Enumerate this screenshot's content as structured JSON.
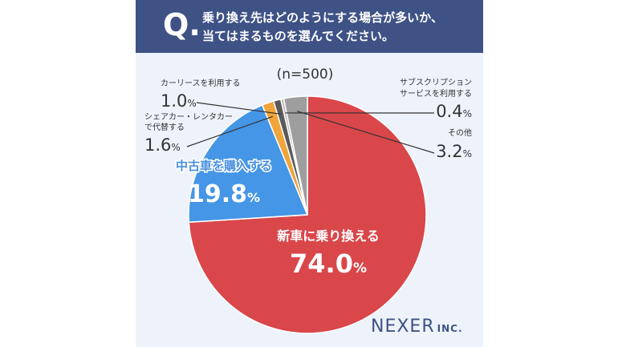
{
  "question": {
    "mark": "Q",
    "line1": "乗り換え先はどのようにする場合が多いか、",
    "line2": "当てはまるものを選んでください。"
  },
  "sample_size": "(n=500)",
  "brand": {
    "name": "NEXER",
    "suffix": "INC."
  },
  "colors": {
    "header": "#3e5286",
    "background": "#eef3fb",
    "new_car": "#d9474b",
    "used_car": "#4596e6",
    "rental": "#f0a43a",
    "car_lease": "#5a5a5a",
    "subscription": "#bbbbbb",
    "other": "#9e9e9e",
    "label_dark": "#333333",
    "label_blue": "#4a8fe0"
  },
  "chart_data": {
    "type": "pie",
    "start": "12 o'clock",
    "direction": "clockwise",
    "unit": "%",
    "slices": [
      {
        "label": "新車に乗り換える",
        "value": 74.0,
        "value_text": "74.0",
        "color": "#d9474b"
      },
      {
        "label": "中古車を購入する",
        "value": 19.8,
        "value_text": "19.8",
        "color": "#4596e6"
      },
      {
        "label": "シェアカー・レンタカーで代替する",
        "label_lines": [
          "シェアカー・レンタカー",
          "で代替する"
        ],
        "value": 1.6,
        "value_text": "1.6",
        "color": "#f0a43a"
      },
      {
        "label": "カーリースを利用する",
        "value": 1.0,
        "value_text": "1.0",
        "color": "#5a5a5a"
      },
      {
        "label": "サブスクリプションサービスを利用する",
        "label_lines": [
          "サブスクリプション",
          "サービスを利用する"
        ],
        "value": 0.4,
        "value_text": "0.4",
        "color": "#bbbbbb"
      },
      {
        "label": "その他",
        "value": 3.2,
        "value_text": "3.2",
        "color": "#9e9e9e"
      }
    ]
  }
}
